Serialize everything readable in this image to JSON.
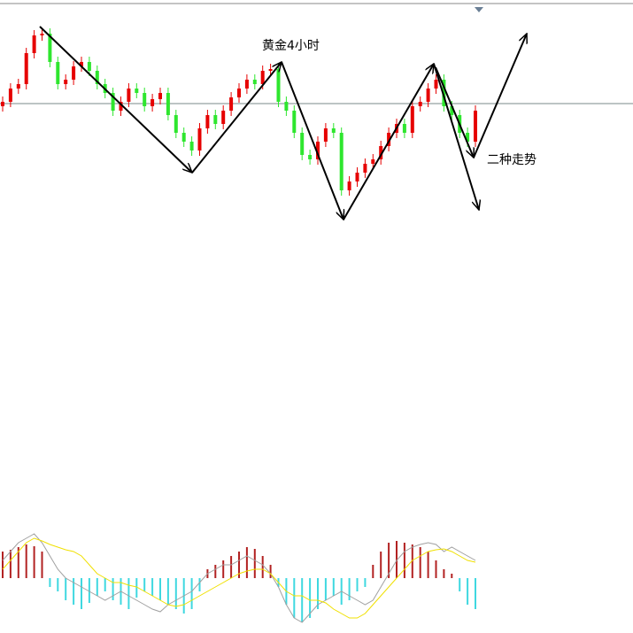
{
  "chart_data": [
    {
      "type": "candlestick",
      "annotations": [
        "黄金4小时",
        "二种走势"
      ],
      "ylim": [
        0,
        260
      ],
      "price_line": 143,
      "up_color": "#e60000",
      "down_color": "#2ee62e",
      "open": [
        140,
        145,
        160,
        165,
        200,
        220,
        222,
        190,
        165,
        170,
        185,
        190,
        180,
        165,
        155,
        135,
        145,
        160,
        155,
        140,
        148,
        155,
        130,
        110,
        100,
        90,
        115,
        130,
        120,
        135,
        150,
        160,
        170,
        165,
        180,
        182,
        145,
        135,
        110,
        85,
        80,
        100,
        115,
        110,
        45,
        55,
        65,
        75,
        80,
        95,
        110,
        120,
        110,
        140,
        145,
        160,
        170,
        140,
        130,
        110,
        100
      ],
      "high": [
        151,
        166,
        171,
        206,
        226,
        228,
        228,
        196,
        176,
        191,
        196,
        196,
        186,
        171,
        161,
        151,
        166,
        166,
        161,
        154,
        161,
        161,
        136,
        116,
        106,
        121,
        136,
        136,
        141,
        156,
        166,
        176,
        176,
        186,
        188,
        188,
        151,
        141,
        116,
        91,
        106,
        121,
        121,
        116,
        61,
        71,
        81,
        86,
        101,
        116,
        126,
        126,
        146,
        151,
        166,
        176,
        176,
        146,
        136,
        116,
        141
      ],
      "low": [
        134,
        139,
        154,
        159,
        194,
        214,
        184,
        159,
        159,
        164,
        179,
        174,
        159,
        149,
        129,
        129,
        139,
        149,
        134,
        134,
        142,
        124,
        104,
        94,
        84,
        84,
        109,
        114,
        114,
        129,
        144,
        154,
        159,
        159,
        174,
        139,
        129,
        104,
        79,
        74,
        74,
        94,
        104,
        39,
        39,
        49,
        59,
        69,
        74,
        89,
        104,
        104,
        104,
        134,
        139,
        154,
        134,
        124,
        104,
        94,
        94
      ],
      "close": [
        145,
        160,
        165,
        200,
        220,
        222,
        190,
        165,
        170,
        185,
        190,
        180,
        165,
        155,
        135,
        145,
        160,
        155,
        140,
        148,
        155,
        130,
        110,
        100,
        90,
        115,
        130,
        120,
        135,
        150,
        160,
        170,
        165,
        180,
        182,
        145,
        135,
        110,
        85,
        80,
        100,
        115,
        110,
        45,
        55,
        65,
        75,
        80,
        95,
        110,
        120,
        110,
        140,
        145,
        160,
        170,
        140,
        130,
        110,
        100,
        135
      ]
    },
    {
      "type": "macd",
      "ylim": [
        -50,
        50
      ],
      "histogram": [
        30,
        32,
        35,
        38,
        36,
        30,
        -10,
        -15,
        -25,
        -30,
        -35,
        -28,
        -20,
        -15,
        -25,
        -30,
        -35,
        -22,
        -15,
        -20,
        -25,
        -30,
        -35,
        -40,
        -35,
        -15,
        10,
        15,
        20,
        25,
        30,
        35,
        33,
        25,
        15,
        -10,
        -30,
        -45,
        -50,
        -45,
        -35,
        -25,
        -20,
        -30,
        -25,
        -15,
        -10,
        15,
        30,
        40,
        42,
        40,
        38,
        35,
        30,
        20,
        10,
        5,
        -15,
        -30,
        -35
      ],
      "positive_color": "#b22222",
      "negative_color": "#3fd8e0",
      "series": [
        {
          "color": "#a0a0a0",
          "values": [
            20,
            30,
            40,
            45,
            50,
            40,
            25,
            10,
            0,
            -5,
            -10,
            -15,
            -20,
            -25,
            -20,
            -15,
            -20,
            -25,
            -30,
            -35,
            -38,
            -30,
            -25,
            -20,
            -15,
            -5,
            5,
            10,
            15,
            15,
            20,
            25,
            20,
            15,
            5,
            -10,
            -30,
            -45,
            -50,
            -40,
            -30,
            -25,
            -20,
            -15,
            -20,
            -25,
            -30,
            -25,
            -10,
            5,
            20,
            30,
            35,
            38,
            40,
            38,
            30,
            35,
            30,
            25,
            20
          ]
        },
        {
          "color": "#f0e000",
          "values": [
            10,
            20,
            30,
            40,
            45,
            42,
            38,
            35,
            32,
            30,
            25,
            15,
            5,
            0,
            -5,
            -5,
            -8,
            -10,
            -15,
            -20,
            -25,
            -30,
            -32,
            -30,
            -25,
            -20,
            -15,
            -10,
            -5,
            0,
            5,
            8,
            10,
            10,
            5,
            -5,
            -15,
            -20,
            -20,
            -25,
            -25,
            -28,
            -35,
            -40,
            -45,
            -45,
            -40,
            -30,
            -20,
            -10,
            0,
            10,
            20,
            25,
            30,
            32,
            33,
            30,
            25,
            20,
            18
          ]
        }
      ]
    }
  ]
}
